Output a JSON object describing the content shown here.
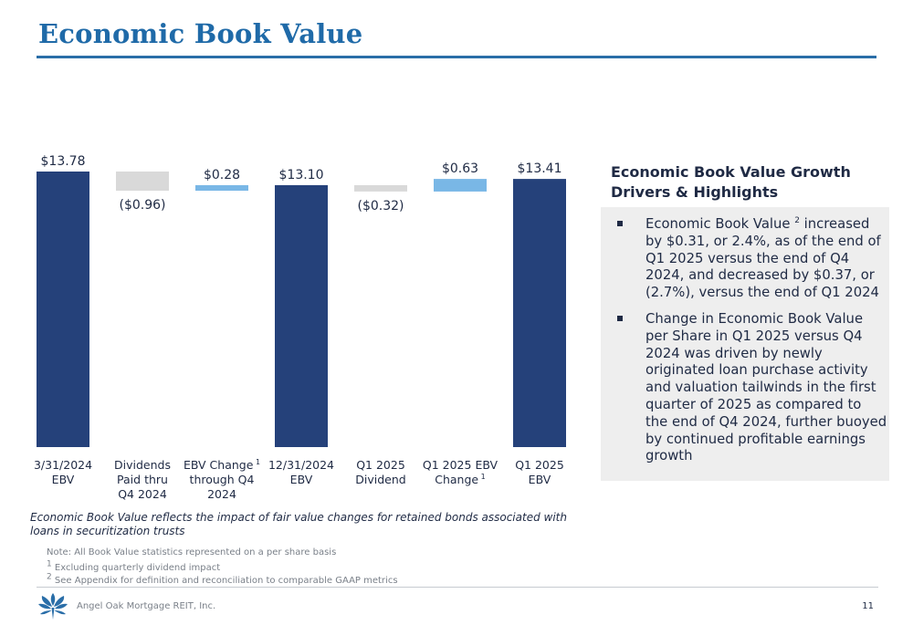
{
  "page": {
    "title": "Economic Book Value",
    "page_number": "11",
    "company": "Angel Oak Mortgage REIT, Inc."
  },
  "colors": {
    "title_blue": "#1f6aa8",
    "total_bar": "#25417a",
    "increase_bar": "#79b7e6",
    "decrease_bar": "#d9d9d9",
    "text_dark": "#1f2a44",
    "panel_bg": "#eeeeee"
  },
  "chart_data": {
    "type": "waterfall",
    "ylim": [
      0,
      14.0
    ],
    "grid": false,
    "legend": "none",
    "bars": [
      {
        "label_lines": [
          "3/31/2024",
          "EBV"
        ],
        "kind": "total",
        "start": 0,
        "end": 13.78,
        "value_label": "$13.78"
      },
      {
        "label_lines": [
          "Dividends",
          "Paid thru",
          "Q4 2024"
        ],
        "kind": "decrease",
        "start": 13.78,
        "end": 12.82,
        "value_label": "($0.96)"
      },
      {
        "label_lines": [
          "EBV Change",
          "through Q4",
          "2024"
        ],
        "footnote": "1",
        "kind": "increase",
        "start": 12.82,
        "end": 13.1,
        "value_label": "$0.28"
      },
      {
        "label_lines": [
          "12/31/2024",
          "EBV"
        ],
        "kind": "total",
        "start": 0,
        "end": 13.1,
        "value_label": "$13.10"
      },
      {
        "label_lines": [
          "Q1 2025",
          "Dividend"
        ],
        "kind": "decrease",
        "start": 13.1,
        "end": 12.78,
        "value_label": "($0.32)"
      },
      {
        "label_lines": [
          "Q1 2025 EBV",
          "Change"
        ],
        "footnote": "1",
        "kind": "increase",
        "start": 12.78,
        "end": 13.41,
        "value_label": "$0.63"
      },
      {
        "label_lines": [
          "Q1 2025",
          "EBV"
        ],
        "kind": "total",
        "start": 0,
        "end": 13.41,
        "value_label": "$13.41"
      }
    ]
  },
  "highlights": {
    "heading": "Economic Book Value Growth Drivers & Highlights",
    "bullet1_pre": "Economic Book Value",
    "bullet1_sup": "2",
    "bullet1_post": " increased by $0.31, or 2.4%, as of the end of Q1 2025 versus the end of Q4 2024, and decreased by $0.37, or (2.7%), versus the end of Q1 2024",
    "bullet2": "Change in Economic Book Value per Share in Q1 2025 versus Q4 2024 was driven by newly originated loan purchase activity and valuation tailwinds in the first quarter of 2025 as compared to the end of Q4 2024, further buoyed by continued profitable earnings growth"
  },
  "notes": {
    "italic": "Economic Book Value reflects the impact of fair value changes for retained bonds associated with loans in securitization trusts",
    "note_main": "Note: All Book Value statistics represented on a per share basis",
    "footnote1_num": "1",
    "footnote1": " Excluding quarterly dividend impact",
    "footnote2_num": "2",
    "footnote2": " See Appendix for definition and reconciliation to comparable GAAP metrics"
  }
}
